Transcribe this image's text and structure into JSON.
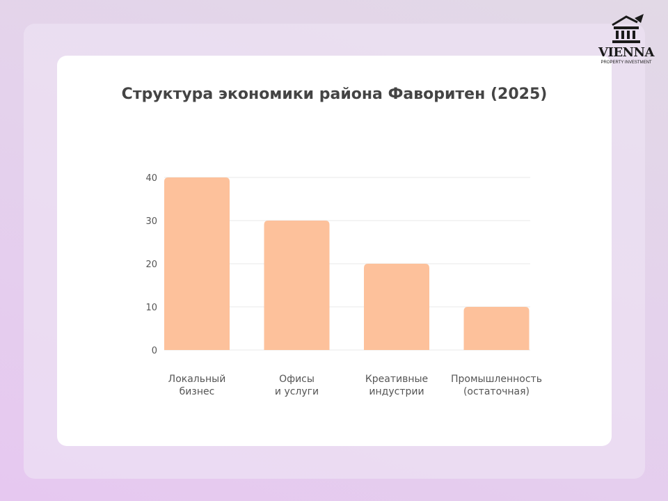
{
  "brand": {
    "name": "VIENNA",
    "tagline": "PROPERTY INVESTMENT"
  },
  "chart_data": {
    "type": "bar",
    "title": "Структура экономики района Фаворитен (2025)",
    "xlabel": "",
    "ylabel": "",
    "categories": [
      "Локальный\nбизнес",
      "Офисы\nи услуги",
      "Креативные\nиндустрии",
      "Промышленность\n(остаточная)"
    ],
    "values": [
      40,
      30,
      20,
      10
    ],
    "ylim": [
      0,
      40
    ],
    "yticks": [
      0,
      10,
      20,
      30,
      40
    ],
    "grid": true,
    "legend": "none",
    "colors": {
      "bar": "#fdc19b",
      "grid": "#e9e9e9",
      "tick_text": "#555555",
      "title": "#444444"
    }
  }
}
